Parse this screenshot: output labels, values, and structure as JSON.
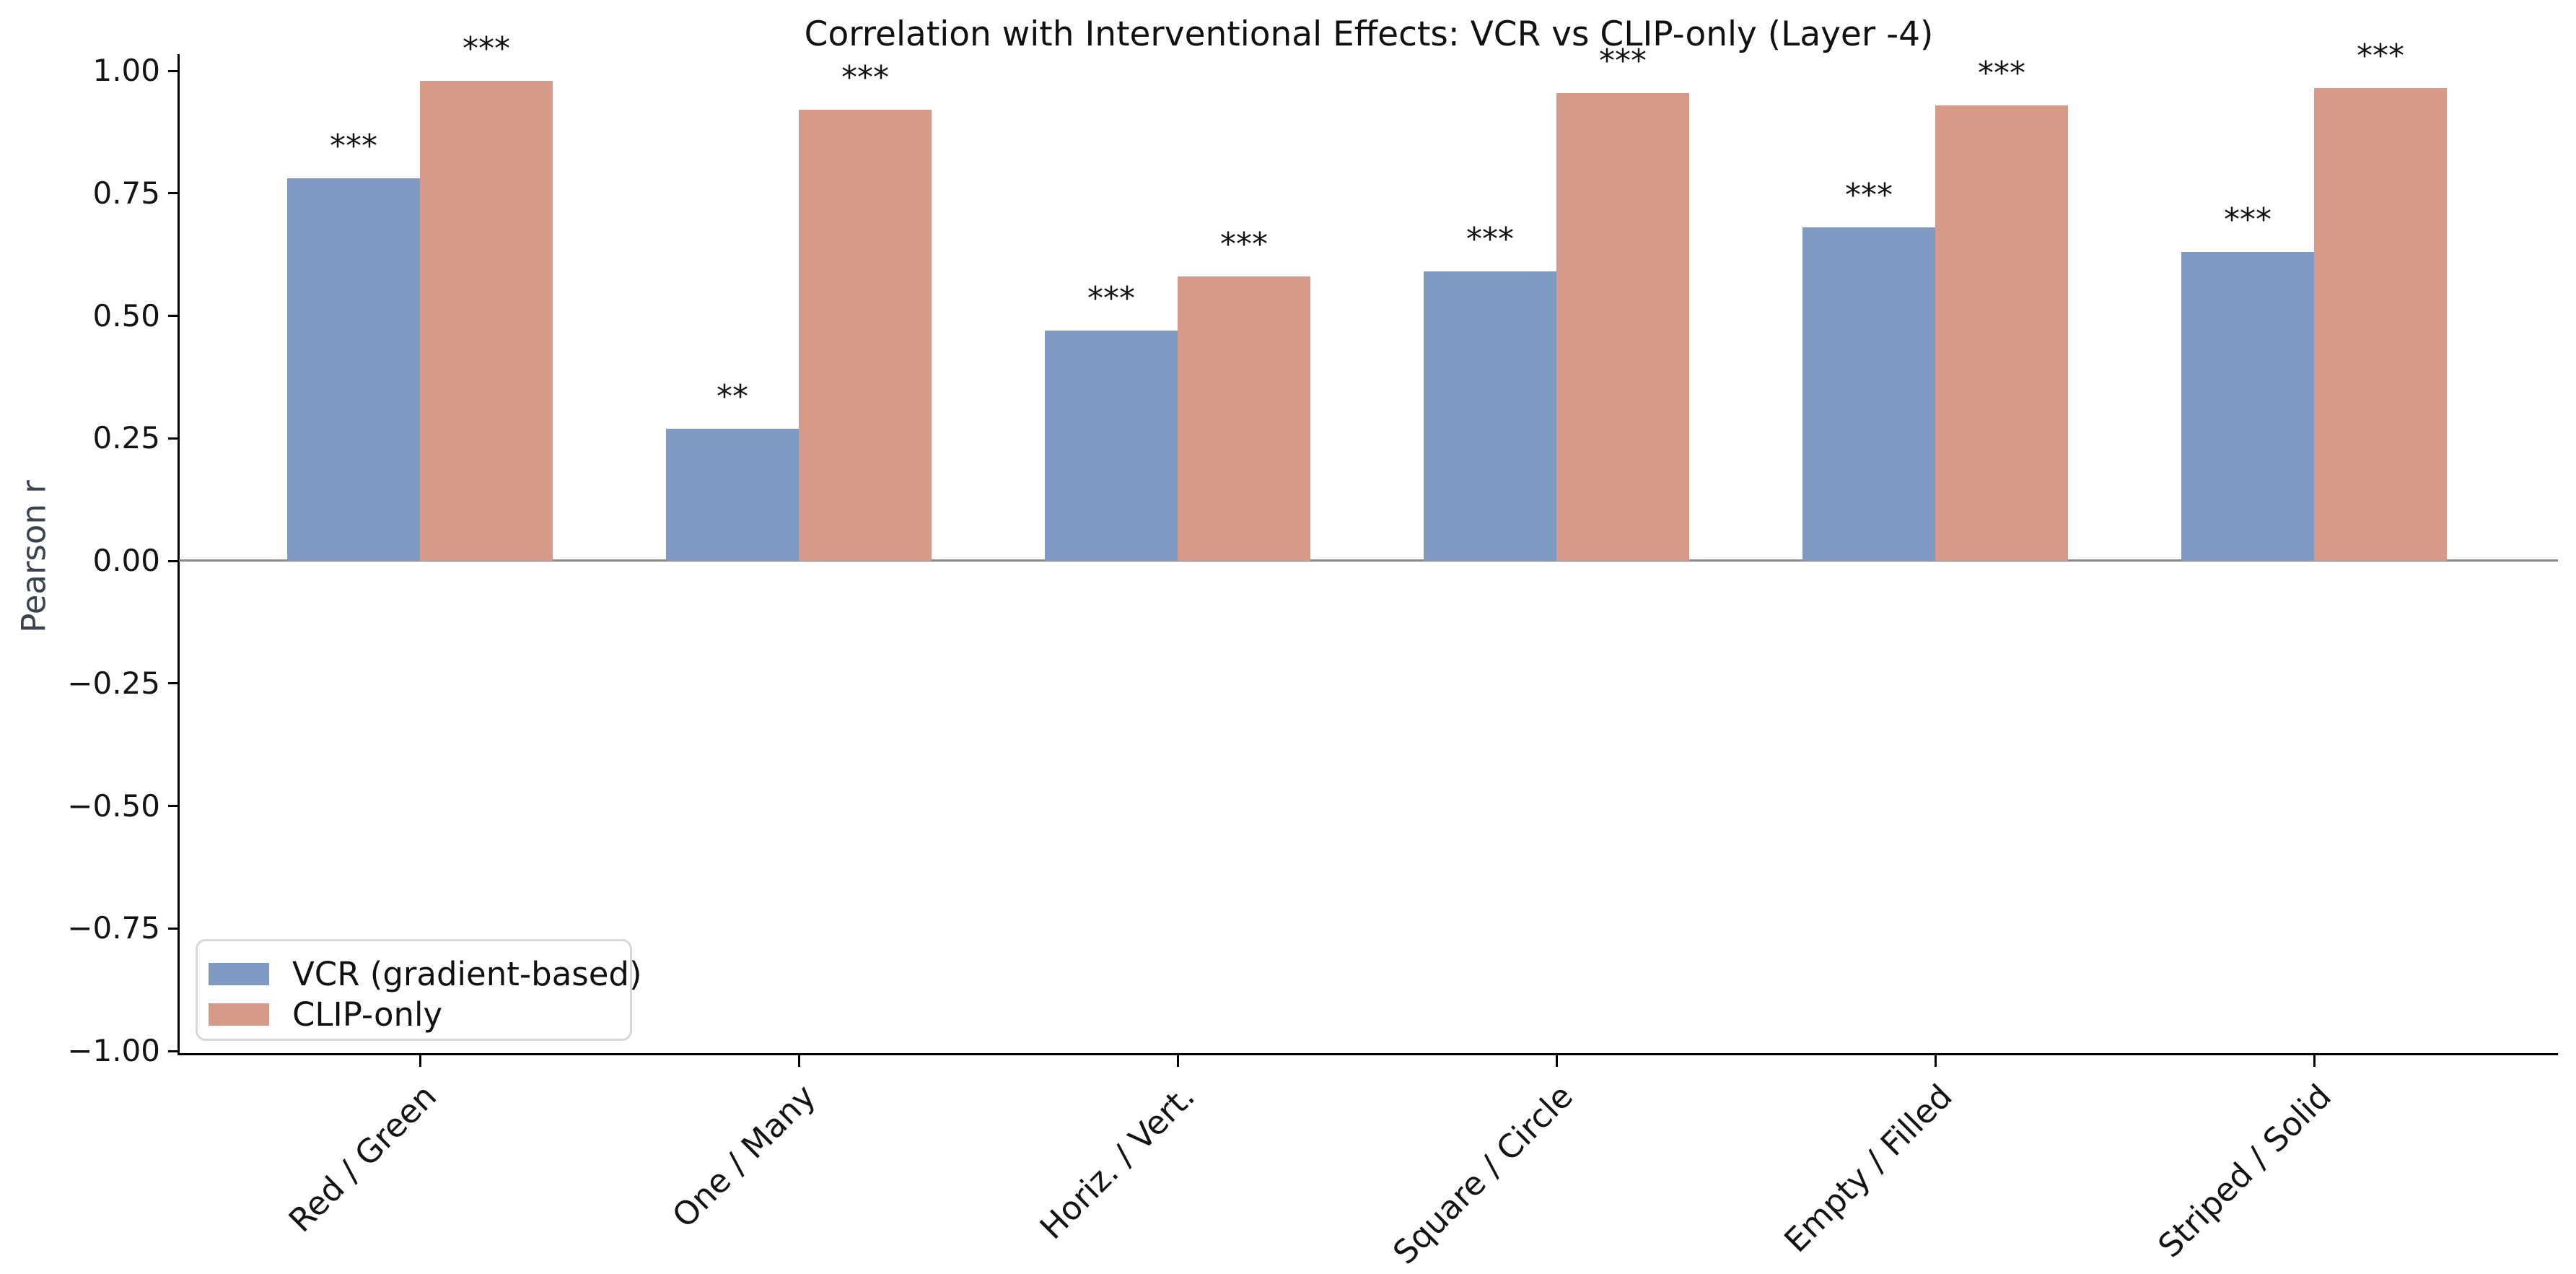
{
  "chart_data": {
    "type": "bar",
    "title": "Correlation with Interventional Effects: VCR vs CLIP-only (Layer -4)",
    "ylabel": "Pearson r",
    "categories": [
      "Red / Green",
      "One / Many",
      "Horiz. / Vert.",
      "Square / Circle",
      "Empty / Filled",
      "Striped / Solid"
    ],
    "series": [
      {
        "name": "VCR (gradient-based)",
        "color": "#7e9ac2",
        "values": [
          0.78,
          0.27,
          0.47,
          0.59,
          0.68,
          0.63
        ],
        "significance": [
          "***",
          "**",
          "***",
          "***",
          "***",
          "***"
        ]
      },
      {
        "name": "CLIP-only",
        "color": "#d89a88",
        "values": [
          0.98,
          0.92,
          0.58,
          0.955,
          0.93,
          0.965
        ],
        "significance": [
          "***",
          "***",
          "***",
          "***",
          "***",
          "***"
        ]
      }
    ],
    "ylim": [
      -1.0,
      1.0
    ],
    "yticks": [
      {
        "label": "1.00",
        "value": 1.0
      },
      {
        "label": "0.75",
        "value": 0.75
      },
      {
        "label": "0.50",
        "value": 0.5
      },
      {
        "label": "0.25",
        "value": 0.25
      },
      {
        "label": "0.00",
        "value": 0.0
      },
      {
        "label": "−0.25",
        "value": -0.25
      },
      {
        "label": "−0.50",
        "value": -0.5
      },
      {
        "label": "−0.75",
        "value": -0.75
      },
      {
        "label": "−1.00",
        "value": -1.0
      }
    ],
    "grid": false,
    "zero_line": true,
    "legend_position": "lower left",
    "colors": {
      "axis": "#000000",
      "zero_line": "#888888",
      "ylabel_text": "#3b4351",
      "tick_text": "#141414",
      "significance_text": "#111111",
      "legend_border": "#d8d8d8"
    }
  }
}
